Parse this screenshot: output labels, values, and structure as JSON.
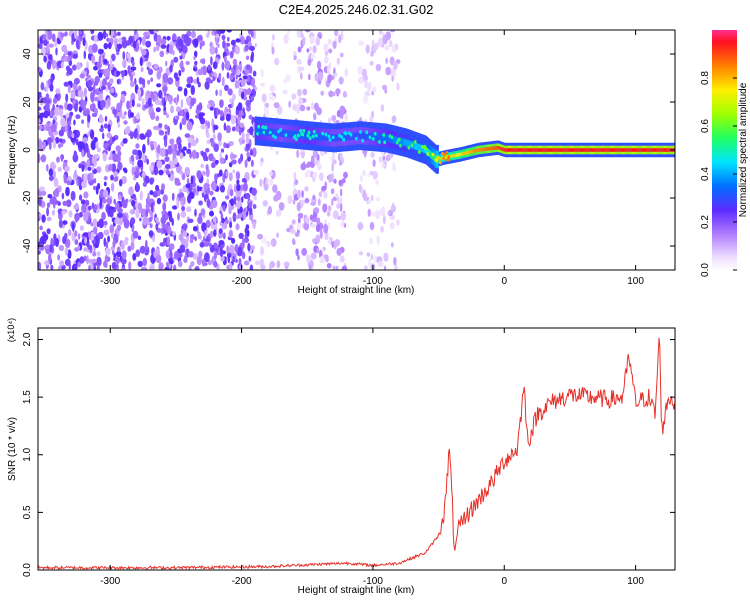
{
  "title": "C2E4.2025.246.02.31.G02",
  "chart_data": [
    {
      "type": "heatmap",
      "xlabel": "Height of straight line (km)",
      "ylabel": "Frequency (Hz)",
      "xlim": [
        -355,
        130
      ],
      "ylim": [
        -50,
        50
      ],
      "x_ticks": [
        -300,
        -200,
        -100,
        0,
        100
      ],
      "y_ticks": [
        -40,
        -20,
        0,
        20,
        40
      ],
      "colorbar": {
        "label": "Normalized spectral amplitude",
        "range": [
          0,
          1
        ],
        "ticks": [
          0.0,
          0.2,
          0.4,
          0.6,
          0.8
        ],
        "tick_labels": [
          "0.0",
          "0.2",
          "0.4",
          "0.6",
          "0.8"
        ]
      },
      "ridge": {
        "x": [
          -190,
          -170,
          -150,
          -130,
          -110,
          -90,
          -75,
          -60,
          -52,
          -45,
          -35,
          -20,
          -5,
          0,
          20,
          60,
          100,
          115,
          130
        ],
        "y": [
          8,
          7,
          6,
          5,
          6,
          5,
          3,
          0,
          -4,
          -3,
          -2,
          0,
          1,
          0,
          0,
          0,
          0,
          0,
          0
        ],
        "amplitude": [
          0.35,
          0.3,
          0.35,
          0.3,
          0.3,
          0.35,
          0.4,
          0.45,
          0.6,
          0.7,
          0.75,
          0.85,
          0.9,
          0.95,
          0.95,
          0.95,
          0.95,
          0.95,
          0.95
        ]
      },
      "grid": false
    },
    {
      "type": "line",
      "xlabel": "Height of straight line (km)",
      "ylabel": "SNR (10 * v/v)",
      "y_multiplier_label": "(x10⁴)",
      "xlim": [
        -355,
        130
      ],
      "ylim": [
        0,
        2.1
      ],
      "x_ticks": [
        -300,
        -200,
        -100,
        0,
        100
      ],
      "y_ticks": [
        0.0,
        0.5,
        1.0,
        1.5,
        2.0
      ],
      "y_tick_labels": [
        "0.0",
        "0.5",
        "1.0",
        "1.5",
        "2.0"
      ],
      "series": [
        {
          "color": "#e8302a",
          "x": [
            -355,
            -250,
            -180,
            -160,
            -140,
            -120,
            -100,
            -80,
            -60,
            -50,
            -45,
            -42,
            -40,
            -38,
            -35,
            -30,
            -20,
            -10,
            0,
            10,
            15,
            18,
            25,
            35,
            50,
            80,
            90,
            95,
            100,
            110,
            115,
            118,
            120,
            125,
            130
          ],
          "y": [
            0.02,
            0.02,
            0.03,
            0.04,
            0.05,
            0.06,
            0.04,
            0.06,
            0.15,
            0.3,
            0.55,
            1.05,
            0.7,
            0.15,
            0.35,
            0.45,
            0.6,
            0.75,
            0.95,
            1.05,
            1.6,
            1.1,
            1.35,
            1.45,
            1.52,
            1.48,
            1.5,
            1.85,
            1.45,
            1.5,
            1.35,
            2.05,
            1.2,
            1.5,
            1.45
          ]
        }
      ],
      "grid": false
    }
  ]
}
